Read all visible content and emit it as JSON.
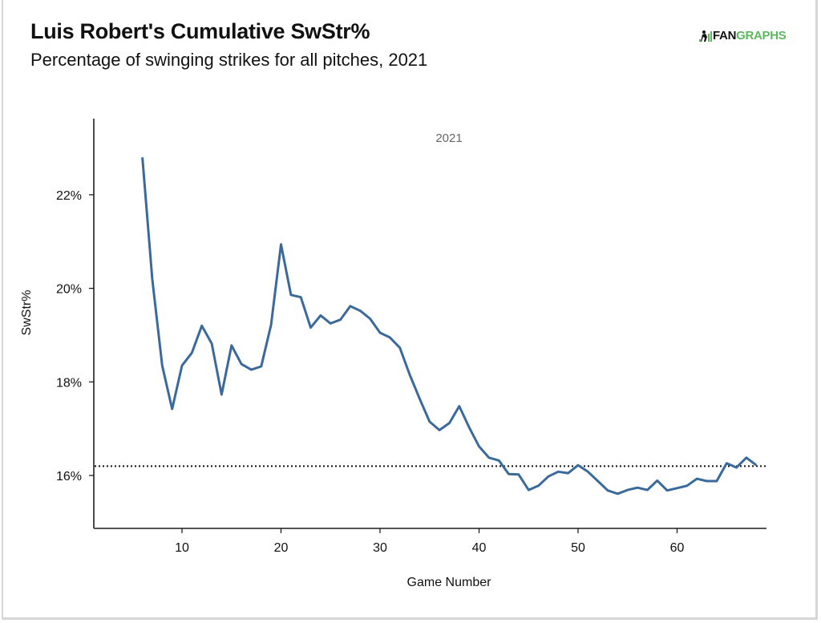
{
  "header": {
    "title": "Luis Robert's Cumulative SwStr%",
    "subtitle": "Percentage of swinging strikes for all pitches, 2021"
  },
  "logo": {
    "icon": "batter-icon",
    "text_dark": "FAN",
    "text_green": "GRAPHS",
    "colors": {
      "dark": "#111111",
      "green": "#5cb85c"
    }
  },
  "chart_data": {
    "type": "line",
    "title": "Luis Robert's Cumulative SwStr%",
    "subtitle": "Percentage of swinging strikes for all pitches, 2021",
    "xlabel": "Game Number",
    "ylabel": "SwStr%",
    "facet_label": "2021",
    "xlim": [
      1,
      69
    ],
    "ylim": [
      15.1,
      23.8
    ],
    "xticks": [
      10,
      20,
      30,
      40,
      50,
      60
    ],
    "xtick_labels": [
      "10",
      "20",
      "30",
      "40",
      "50",
      "60"
    ],
    "yticks": [
      16,
      18,
      20,
      22
    ],
    "ytick_labels": [
      "16%",
      "18%",
      "20%",
      "22%"
    ],
    "grid": false,
    "legend": "none",
    "series": [
      {
        "name": "Cumulative SwStr%",
        "color": "#3a6a9b",
        "x": [
          6,
          7,
          8,
          9,
          10,
          11,
          12,
          13,
          14,
          15,
          16,
          17,
          18,
          19,
          20,
          21,
          22,
          23,
          24,
          25,
          26,
          27,
          28,
          29,
          30,
          31,
          32,
          33,
          34,
          35,
          36,
          37,
          38,
          39,
          40,
          41,
          42,
          43,
          44,
          45,
          46,
          47,
          48,
          49,
          50,
          51,
          52,
          53,
          54,
          55,
          56,
          57,
          58,
          59,
          60,
          61,
          62,
          63,
          64,
          65,
          66,
          67,
          68
        ],
        "values": [
          22.8,
          20.2,
          18.35,
          17.42,
          18.35,
          18.62,
          19.2,
          18.82,
          17.73,
          18.78,
          18.38,
          18.26,
          18.33,
          19.22,
          20.94,
          19.86,
          19.81,
          19.16,
          19.42,
          19.25,
          19.33,
          19.62,
          19.52,
          19.35,
          19.05,
          18.95,
          18.73,
          18.15,
          17.64,
          17.15,
          16.97,
          17.12,
          17.48,
          17.03,
          16.62,
          16.38,
          16.32,
          16.03,
          16.02,
          15.69,
          15.78,
          15.98,
          16.08,
          16.05,
          16.22,
          16.08,
          15.88,
          15.68,
          15.61,
          15.69,
          15.74,
          15.69,
          15.89,
          15.68,
          15.73,
          15.78,
          15.93,
          15.88,
          15.88,
          16.26,
          16.17,
          16.38,
          16.22
        ]
      }
    ],
    "reference_line": {
      "value": 16.2,
      "style": "dotted",
      "color": "#111111"
    }
  }
}
